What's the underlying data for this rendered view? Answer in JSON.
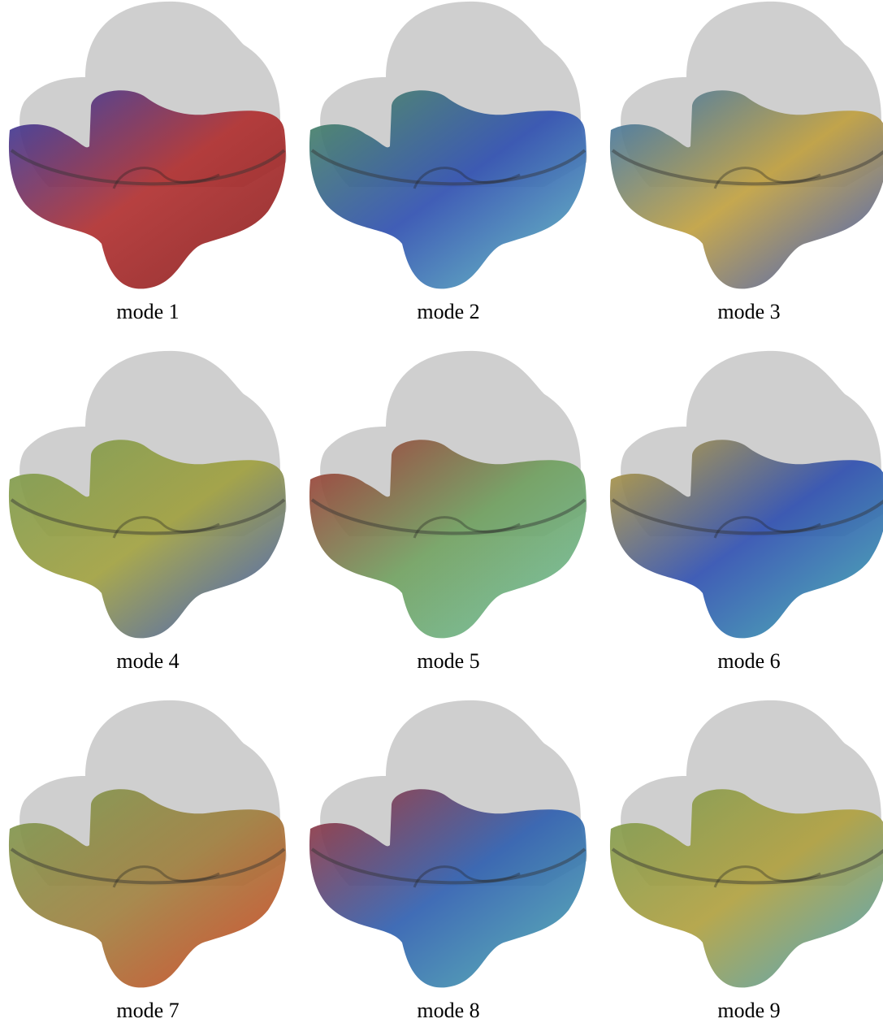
{
  "figure": {
    "panels": [
      {
        "caption": "mode 1"
      },
      {
        "caption": "mode 2"
      },
      {
        "caption": "mode 3"
      },
      {
        "caption": "mode 4"
      },
      {
        "caption": "mode 5"
      },
      {
        "caption": "mode 6"
      },
      {
        "caption": "mode 7"
      },
      {
        "caption": "mode 8"
      },
      {
        "caption": "mode 9"
      }
    ]
  }
}
